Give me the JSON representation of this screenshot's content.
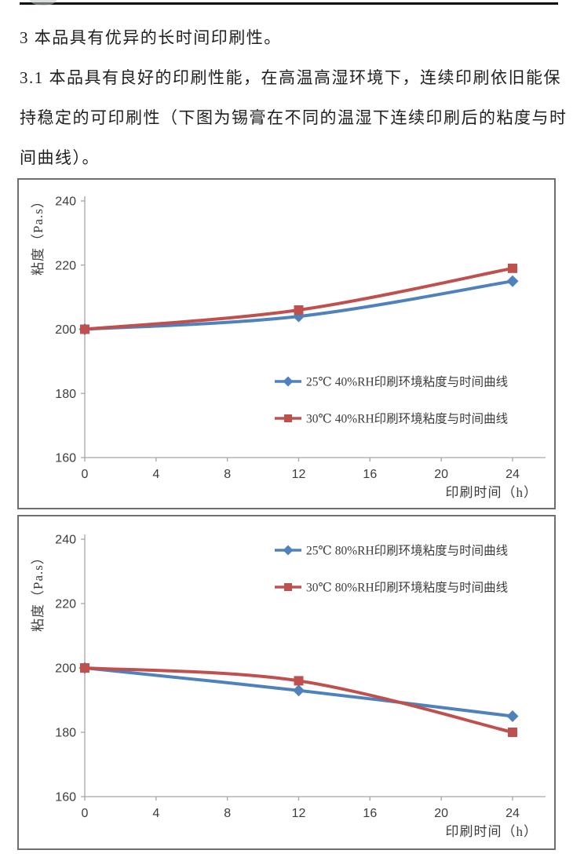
{
  "page": {
    "heading": "3 本品具有优异的长时间印刷性。",
    "body_lines": [
      "3.1 本品具有良好的印刷性能，在高温高湿环境下，连续印刷依旧能保",
      "持稳定的可印刷性（下图为锡膏在不同的温湿下连续印刷后的粘度与时",
      "间曲线）。"
    ]
  },
  "colors": {
    "series_blue": "#4F81BD",
    "series_red": "#C0504D",
    "axis": "#a6a6a6",
    "tick_text": "#3c3c3c"
  },
  "chart_data": [
    {
      "type": "line",
      "xlabel": "印刷时间（h）",
      "ylabel": "粘度（Pa.s）",
      "x": [
        0,
        12,
        24
      ],
      "x_ticks": [
        0,
        4,
        8,
        12,
        16,
        20,
        24
      ],
      "y_ticks": [
        160,
        180,
        200,
        220,
        240
      ],
      "xlim": [
        0,
        26
      ],
      "ylim": [
        160,
        245
      ],
      "grid": false,
      "legend_position": "inside-lower-right",
      "series": [
        {
          "name": "25℃ 40%RH印刷环境粘度与时间曲线",
          "values": [
            200,
            204,
            215
          ],
          "color": "#4F81BD",
          "marker": "diamond"
        },
        {
          "name": "30℃ 40%RH印刷环境粘度与时间曲线",
          "values": [
            200,
            206,
            219
          ],
          "color": "#C0504D",
          "marker": "square"
        }
      ]
    },
    {
      "type": "line",
      "xlabel": "印刷时间（h）",
      "ylabel": "粘度（Pa.s）",
      "x": [
        0,
        12,
        24
      ],
      "x_ticks": [
        0,
        4,
        8,
        12,
        16,
        20,
        24
      ],
      "y_ticks": [
        160,
        180,
        200,
        220,
        240
      ],
      "xlim": [
        0,
        26
      ],
      "ylim": [
        160,
        245
      ],
      "grid": false,
      "legend_position": "inside-upper-right",
      "series": [
        {
          "name": "25℃ 80%RH印刷环境粘度与时间曲线",
          "values": [
            200,
            193,
            185
          ],
          "color": "#4F81BD",
          "marker": "diamond"
        },
        {
          "name": "30℃ 80%RH印刷环境粘度与时间曲线",
          "values": [
            200,
            196,
            180
          ],
          "color": "#C0504D",
          "marker": "square"
        }
      ]
    }
  ]
}
